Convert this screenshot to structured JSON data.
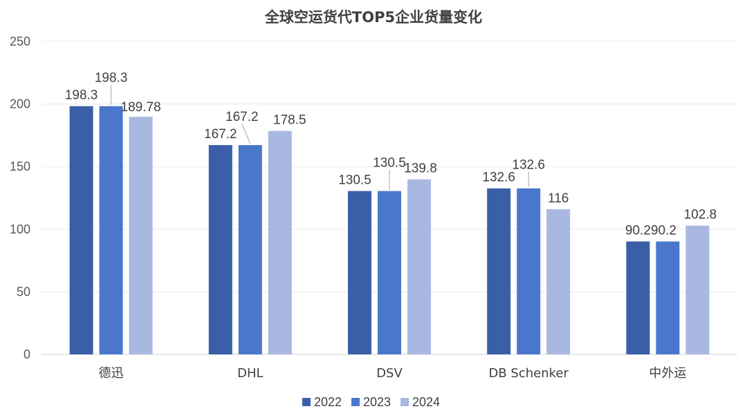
{
  "chart_data": {
    "type": "bar",
    "title": "全球空运货代TOP5企业货量变化",
    "xlabel": "",
    "ylabel": "",
    "ylim": [
      0,
      250
    ],
    "yticks": [
      0,
      50,
      100,
      150,
      200,
      250
    ],
    "grid": true,
    "legend_position": "bottom",
    "categories": [
      "德迅",
      "DHL",
      "DSV",
      "DB Schenker",
      "中外运"
    ],
    "series": [
      {
        "name": "2022",
        "color": "#3A5FA8",
        "values": [
          198.3,
          167.2,
          130.5,
          132.6,
          90.2
        ],
        "labels": [
          "198.3",
          "167.2",
          "130.5",
          "132.6",
          "90.2"
        ]
      },
      {
        "name": "2023",
        "color": "#4A77CC",
        "values": [
          198.3,
          167.2,
          130.5,
          132.6,
          90.2
        ],
        "labels": [
          "198.3",
          "167.2",
          "130.5",
          "132.6",
          "90.2"
        ]
      },
      {
        "name": "2024",
        "color": "#A9B8E0",
        "values": [
          189.78,
          178.5,
          139.8,
          116,
          102.8
        ],
        "labels": [
          "189.78",
          "178.5",
          "139.8",
          "116",
          "102.8"
        ]
      }
    ]
  }
}
